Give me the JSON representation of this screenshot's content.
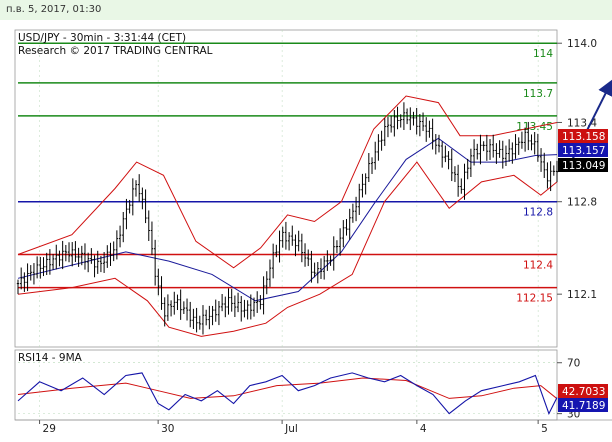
{
  "header": {
    "datetime": "п.в. 5, 2017, 01:30"
  },
  "colors": {
    "green": "#1a8a1a",
    "blue": "#1515a8",
    "red": "#d01010",
    "price": "#000000",
    "ma": "#1a1a9a",
    "arrow": "#1a2a8a",
    "grid": "#b9d9b9",
    "last_price_bg": "#000000",
    "upper_tag_bg": "#cc1010",
    "ma_tag_bg": "#1515b0",
    "rsi_line": "#1515a8",
    "rsi_ma": "#d01010"
  },
  "chart_data": [
    {
      "type": "candlestick",
      "title": "USD/JPY - 30min - 3:31:44 (CET)",
      "subtitle": "Research © 2017 TRADING CENTRAL",
      "ylim": [
        111.7,
        114.1
      ],
      "y_ticks": [
        114.0,
        113.4,
        112.8,
        112.1
      ],
      "y_tick_labels": [
        "114.0",
        "113.4",
        "112.8",
        "112.1"
      ],
      "x_ticks": [
        "29",
        "30",
        "Jul",
        "4",
        "5"
      ],
      "x_tick_pos": [
        0.04,
        0.26,
        0.49,
        0.74,
        0.965
      ],
      "levels": [
        {
          "value": 114.0,
          "label": "114",
          "color": "green"
        },
        {
          "value": 113.7,
          "label": "113.7",
          "color": "green"
        },
        {
          "value": 113.45,
          "label": "113.45",
          "color": "green"
        },
        {
          "value": 112.8,
          "label": "112.8",
          "color": "blue"
        },
        {
          "value": 112.4,
          "label": "112.4",
          "color": "red"
        },
        {
          "value": 112.15,
          "label": "112.15",
          "color": "red"
        }
      ],
      "price_tags": [
        {
          "value": 113.158,
          "label": "113.158",
          "kind": "upper_tag"
        },
        {
          "value": 113.157,
          "label": "113.157",
          "kind": "ma_tag"
        },
        {
          "value": 113.049,
          "label": "113.049",
          "kind": "last_price"
        }
      ],
      "close_path": [
        [
          0.0,
          112.18
        ],
        [
          0.03,
          112.28
        ],
        [
          0.06,
          112.35
        ],
        [
          0.09,
          112.42
        ],
        [
          0.12,
          112.38
        ],
        [
          0.15,
          112.32
        ],
        [
          0.18,
          112.45
        ],
        [
          0.2,
          112.72
        ],
        [
          0.22,
          112.95
        ],
        [
          0.24,
          112.65
        ],
        [
          0.255,
          112.25
        ],
        [
          0.27,
          111.95
        ],
        [
          0.29,
          112.05
        ],
        [
          0.31,
          111.98
        ],
        [
          0.33,
          111.88
        ],
        [
          0.36,
          111.95
        ],
        [
          0.39,
          112.05
        ],
        [
          0.42,
          111.98
        ],
        [
          0.45,
          112.05
        ],
        [
          0.47,
          112.35
        ],
        [
          0.49,
          112.55
        ],
        [
          0.52,
          112.48
        ],
        [
          0.55,
          112.25
        ],
        [
          0.58,
          112.38
        ],
        [
          0.6,
          112.55
        ],
        [
          0.62,
          112.7
        ],
        [
          0.64,
          112.95
        ],
        [
          0.66,
          113.15
        ],
        [
          0.68,
          113.35
        ],
        [
          0.7,
          113.42
        ],
        [
          0.72,
          113.45
        ],
        [
          0.74,
          113.4
        ],
        [
          0.76,
          113.35
        ],
        [
          0.78,
          113.2
        ],
        [
          0.8,
          113.1
        ],
        [
          0.82,
          112.88
        ],
        [
          0.84,
          113.15
        ],
        [
          0.86,
          113.22
        ],
        [
          0.88,
          113.2
        ],
        [
          0.9,
          113.15
        ],
        [
          0.92,
          113.2
        ],
        [
          0.94,
          113.3
        ],
        [
          0.96,
          113.22
        ],
        [
          0.98,
          112.98
        ],
        [
          1.0,
          113.05
        ]
      ],
      "ma_path": [
        [
          0.0,
          112.22
        ],
        [
          0.1,
          112.32
        ],
        [
          0.2,
          112.42
        ],
        [
          0.28,
          112.35
        ],
        [
          0.36,
          112.25
        ],
        [
          0.44,
          112.05
        ],
        [
          0.52,
          112.12
        ],
        [
          0.6,
          112.42
        ],
        [
          0.66,
          112.78
        ],
        [
          0.72,
          113.12
        ],
        [
          0.78,
          113.28
        ],
        [
          0.84,
          113.1
        ],
        [
          0.9,
          113.1
        ],
        [
          0.96,
          113.15
        ],
        [
          1.0,
          113.157
        ]
      ],
      "bb_upper": [
        [
          0.0,
          112.4
        ],
        [
          0.1,
          112.55
        ],
        [
          0.18,
          112.9
        ],
        [
          0.22,
          113.1
        ],
        [
          0.27,
          113.0
        ],
        [
          0.33,
          112.5
        ],
        [
          0.4,
          112.3
        ],
        [
          0.45,
          112.45
        ],
        [
          0.5,
          112.7
        ],
        [
          0.55,
          112.65
        ],
        [
          0.6,
          112.8
        ],
        [
          0.66,
          113.35
        ],
        [
          0.72,
          113.6
        ],
        [
          0.78,
          113.55
        ],
        [
          0.82,
          113.3
        ],
        [
          0.88,
          113.3
        ],
        [
          0.94,
          113.35
        ],
        [
          1.0,
          113.4
        ]
      ],
      "bb_lower": [
        [
          0.0,
          112.1
        ],
        [
          0.1,
          112.15
        ],
        [
          0.18,
          112.22
        ],
        [
          0.24,
          112.05
        ],
        [
          0.28,
          111.85
        ],
        [
          0.34,
          111.78
        ],
        [
          0.4,
          111.82
        ],
        [
          0.46,
          111.88
        ],
        [
          0.5,
          112.0
        ],
        [
          0.56,
          112.1
        ],
        [
          0.62,
          112.25
        ],
        [
          0.68,
          112.8
        ],
        [
          0.74,
          113.1
        ],
        [
          0.8,
          112.75
        ],
        [
          0.86,
          112.95
        ],
        [
          0.92,
          113.0
        ],
        [
          0.97,
          112.85
        ],
        [
          1.0,
          112.95
        ]
      ],
      "projection_arrow": {
        "from": [
          1.02,
          113.05
        ],
        "to": [
          1.1,
          113.7
        ]
      }
    },
    {
      "type": "line",
      "title": "RSI14 - 9MA",
      "ylim": [
        25,
        80
      ],
      "y_ticks": [
        70,
        30
      ],
      "y_tick_labels": [
        "70",
        "30"
      ],
      "price_tags": [
        {
          "value": 42.7033,
          "label": "42.7033",
          "kind": "upper_tag"
        },
        {
          "value": 41.7189,
          "label": "41.7189",
          "kind": "ma_tag"
        }
      ],
      "rsi_path": [
        [
          0.0,
          40
        ],
        [
          0.04,
          55
        ],
        [
          0.08,
          48
        ],
        [
          0.12,
          58
        ],
        [
          0.16,
          45
        ],
        [
          0.2,
          60
        ],
        [
          0.23,
          62
        ],
        [
          0.26,
          38
        ],
        [
          0.28,
          33
        ],
        [
          0.31,
          45
        ],
        [
          0.34,
          40
        ],
        [
          0.37,
          48
        ],
        [
          0.4,
          38
        ],
        [
          0.43,
          52
        ],
        [
          0.46,
          55
        ],
        [
          0.49,
          60
        ],
        [
          0.52,
          48
        ],
        [
          0.55,
          52
        ],
        [
          0.58,
          58
        ],
        [
          0.62,
          62
        ],
        [
          0.65,
          58
        ],
        [
          0.68,
          55
        ],
        [
          0.71,
          60
        ],
        [
          0.74,
          52
        ],
        [
          0.77,
          45
        ],
        [
          0.8,
          30
        ],
        [
          0.83,
          40
        ],
        [
          0.86,
          48
        ],
        [
          0.9,
          52
        ],
        [
          0.93,
          55
        ],
        [
          0.96,
          60
        ],
        [
          0.985,
          30
        ],
        [
          1.0,
          42.7
        ]
      ],
      "rsi_ma_path": [
        [
          0.0,
          45
        ],
        [
          0.1,
          50
        ],
        [
          0.2,
          54
        ],
        [
          0.26,
          48
        ],
        [
          0.32,
          42
        ],
        [
          0.4,
          44
        ],
        [
          0.48,
          52
        ],
        [
          0.56,
          54
        ],
        [
          0.64,
          58
        ],
        [
          0.72,
          56
        ],
        [
          0.8,
          42
        ],
        [
          0.86,
          44
        ],
        [
          0.92,
          50
        ],
        [
          0.97,
          52
        ],
        [
          1.0,
          41.7
        ]
      ]
    }
  ]
}
